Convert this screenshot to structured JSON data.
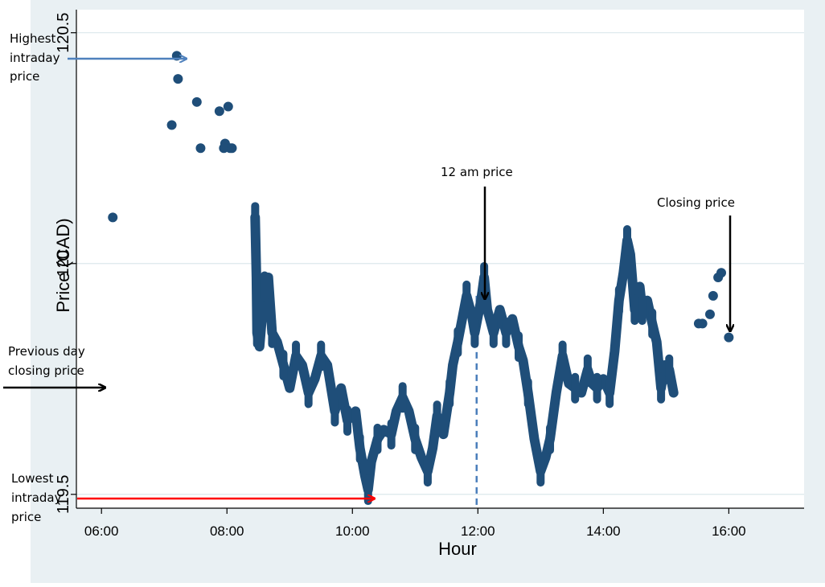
{
  "chart_data": {
    "type": "scatter",
    "title": "",
    "xlabel": "Hour",
    "ylabel": "Price (CAD)",
    "xlim": [
      5.6,
      17.2
    ],
    "ylim": [
      119.47,
      120.55
    ],
    "grid": true,
    "legend": "none",
    "x_ticks": [
      {
        "value": 6,
        "label": "06:00"
      },
      {
        "value": 8,
        "label": "08:00"
      },
      {
        "value": 10,
        "label": "10:00"
      },
      {
        "value": 12,
        "label": "12:00"
      },
      {
        "value": 14,
        "label": "14:00"
      },
      {
        "value": 16,
        "label": "16:00"
      }
    ],
    "y_ticks": [
      {
        "value": 119.5,
        "label": "119.5"
      },
      {
        "value": 120,
        "label": "120"
      },
      {
        "value": 120.5,
        "label": "120.5"
      }
    ],
    "colors": {
      "points": "#1f4e79",
      "grid": "#dce8ec",
      "frame_bg": "#e9f0f3",
      "arrow_high": "#4f81bd",
      "arrow_low": "#ff0000",
      "arrow_black": "#000000",
      "dashed_line": "#4a7ebb"
    },
    "points": [
      [
        6.18,
        120.1
      ],
      [
        7.2,
        120.45
      ],
      [
        7.22,
        120.4
      ],
      [
        7.12,
        120.3
      ],
      [
        7.52,
        120.35
      ],
      [
        7.58,
        120.25
      ],
      [
        7.88,
        120.33
      ],
      [
        8.02,
        120.34
      ],
      [
        7.97,
        120.26
      ],
      [
        8.05,
        120.25
      ],
      [
        7.95,
        120.25
      ],
      [
        8.08,
        120.25
      ],
      [
        15.52,
        119.87
      ],
      [
        15.58,
        119.87
      ],
      [
        15.7,
        119.89
      ],
      [
        15.75,
        119.93
      ],
      [
        15.83,
        119.97
      ],
      [
        15.88,
        119.98
      ],
      [
        16.0,
        119.84
      ]
    ],
    "series_path": [
      [
        8.45,
        120.1
      ],
      [
        8.47,
        119.97
      ],
      [
        8.48,
        119.85
      ],
      [
        8.52,
        119.82
      ],
      [
        8.6,
        119.95
      ],
      [
        8.66,
        119.97
      ],
      [
        8.72,
        119.85
      ],
      [
        8.8,
        119.83
      ],
      [
        8.9,
        119.78
      ],
      [
        9.0,
        119.73
      ],
      [
        9.1,
        119.8
      ],
      [
        9.2,
        119.78
      ],
      [
        9.3,
        119.72
      ],
      [
        9.4,
        119.75
      ],
      [
        9.5,
        119.8
      ],
      [
        9.6,
        119.78
      ],
      [
        9.72,
        119.68
      ],
      [
        9.82,
        119.73
      ],
      [
        9.92,
        119.66
      ],
      [
        10.05,
        119.68
      ],
      [
        10.12,
        119.6
      ],
      [
        10.2,
        119.54
      ],
      [
        10.25,
        119.51
      ],
      [
        10.3,
        119.57
      ],
      [
        10.4,
        119.62
      ],
      [
        10.5,
        119.64
      ],
      [
        10.62,
        119.63
      ],
      [
        10.7,
        119.68
      ],
      [
        10.8,
        119.71
      ],
      [
        10.9,
        119.68
      ],
      [
        11.0,
        119.62
      ],
      [
        11.1,
        119.58
      ],
      [
        11.2,
        119.55
      ],
      [
        11.28,
        119.6
      ],
      [
        11.35,
        119.67
      ],
      [
        11.45,
        119.63
      ],
      [
        11.55,
        119.72
      ],
      [
        11.6,
        119.78
      ],
      [
        11.68,
        119.83
      ],
      [
        11.75,
        119.88
      ],
      [
        11.82,
        119.93
      ],
      [
        11.9,
        119.89
      ],
      [
        11.95,
        119.85
      ],
      [
        12.05,
        119.92
      ],
      [
        12.1,
        119.97
      ],
      [
        12.15,
        119.9
      ],
      [
        12.25,
        119.85
      ],
      [
        12.35,
        119.9
      ],
      [
        12.45,
        119.85
      ],
      [
        12.55,
        119.88
      ],
      [
        12.65,
        119.82
      ],
      [
        12.72,
        119.79
      ],
      [
        12.8,
        119.72
      ],
      [
        12.9,
        119.62
      ],
      [
        13.0,
        119.55
      ],
      [
        13.08,
        119.58
      ],
      [
        13.15,
        119.62
      ],
      [
        13.25,
        119.72
      ],
      [
        13.35,
        119.8
      ],
      [
        13.45,
        119.74
      ],
      [
        13.55,
        119.73
      ],
      [
        13.65,
        119.72
      ],
      [
        13.75,
        119.77
      ],
      [
        13.82,
        119.74
      ],
      [
        13.9,
        119.73
      ],
      [
        14.0,
        119.75
      ],
      [
        14.1,
        119.72
      ],
      [
        14.18,
        119.81
      ],
      [
        14.25,
        119.92
      ],
      [
        14.32,
        119.98
      ],
      [
        14.38,
        120.05
      ],
      [
        14.43,
        120.02
      ],
      [
        14.5,
        119.9
      ],
      [
        14.58,
        119.95
      ],
      [
        14.62,
        119.9
      ],
      [
        14.7,
        119.92
      ],
      [
        14.78,
        119.87
      ],
      [
        14.85,
        119.83
      ],
      [
        14.92,
        119.73
      ],
      [
        14.98,
        119.78
      ],
      [
        15.05,
        119.77
      ],
      [
        15.12,
        119.72
      ]
    ],
    "vertical_marker": {
      "x": 11.98,
      "label": "12 am price"
    },
    "annotations": {
      "highest_line1": "Highest",
      "highest_line2": "intraday",
      "highest_line3": "price",
      "lowest_line1": "Lowest",
      "lowest_line2": "intraday",
      "lowest_line3": "price",
      "prev_line1": "Previous day",
      "prev_line2": "closing price",
      "noon": "12 am price",
      "closing": "Closing price"
    }
  }
}
